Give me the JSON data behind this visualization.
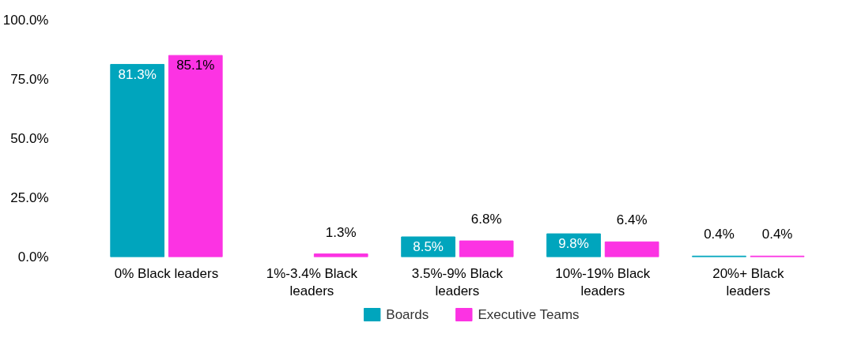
{
  "chart_data": {
    "type": "bar",
    "categories": [
      "0% Black leaders",
      "1%-3.4% Black leaders",
      "3.5%-9% Black leaders",
      "10%-19% Black leaders",
      "20%+ Black leaders"
    ],
    "series": [
      {
        "name": "Boards",
        "color": "#00a5bd",
        "values": [
          81.3,
          null,
          8.5,
          9.8,
          0.4
        ],
        "value_labels": [
          "81.3%",
          null,
          "8.5%",
          "9.8%",
          "0.4%"
        ]
      },
      {
        "name": "Executive Teams",
        "color": "#fc33e3",
        "values": [
          85.1,
          1.3,
          6.8,
          6.4,
          0.4
        ],
        "value_labels": [
          "85.1%",
          "1.3%",
          "6.8%",
          "6.4%",
          "0.4%"
        ]
      }
    ],
    "ylim": [
      0,
      100
    ],
    "yticks": [
      {
        "value": 0,
        "label": "0.0%"
      },
      {
        "value": 25,
        "label": "25.0%"
      },
      {
        "value": 50,
        "label": "50.0%"
      },
      {
        "value": 75,
        "label": "75.0%"
      },
      {
        "value": 100,
        "label": "100.0%"
      }
    ],
    "grid": false,
    "legend": "bottom"
  }
}
